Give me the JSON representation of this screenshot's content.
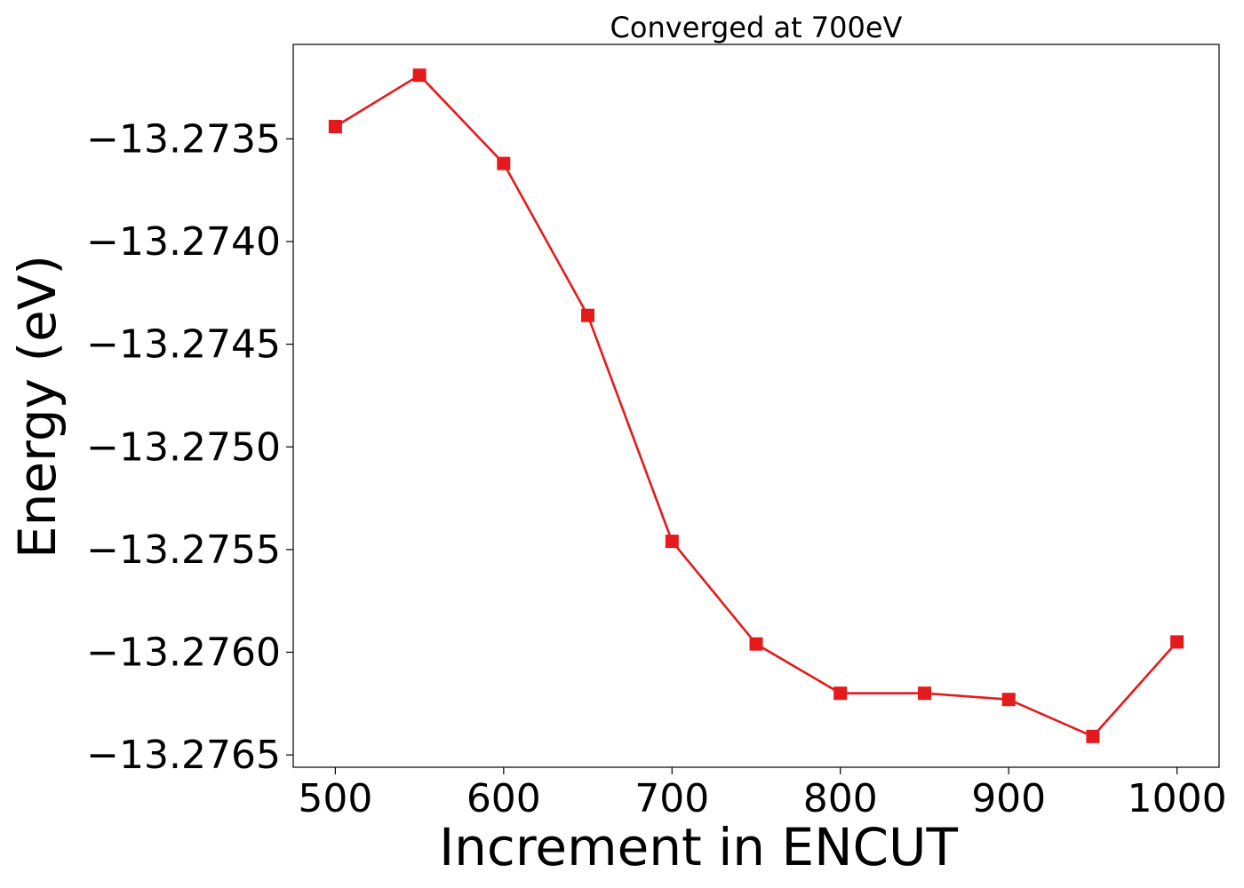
{
  "chart_data": {
    "type": "line",
    "title": "Converged at 700eV",
    "xlabel": "Increment in ENCUT",
    "ylabel": "Energy (eV)",
    "x": [
      500,
      550,
      600,
      650,
      700,
      750,
      800,
      850,
      900,
      950,
      1000
    ],
    "series": [
      {
        "values": [
          -13.27344,
          -13.27319,
          -13.27362,
          -13.27436,
          -13.27546,
          -13.27596,
          -13.2762,
          -13.2762,
          -13.27623,
          -13.27641,
          -13.27595
        ],
        "color": "#e41a1c",
        "marker": "square"
      }
    ],
    "xlim": [
      475,
      1025
    ],
    "ylim": [
      -13.27656,
      -13.27304
    ],
    "xticks": [
      500,
      600,
      700,
      800,
      900,
      1000
    ],
    "xtick_labels": [
      "500",
      "600",
      "700",
      "800",
      "900",
      "1000"
    ],
    "yticks": [
      -13.2735,
      -13.274,
      -13.2745,
      -13.275,
      -13.2755,
      -13.276,
      -13.2765
    ],
    "ytick_labels": [
      "−13.2735",
      "−13.2740",
      "−13.2745",
      "−13.2750",
      "−13.2755",
      "−13.2760",
      "−13.2765"
    ],
    "grid": false,
    "legend": "none"
  }
}
